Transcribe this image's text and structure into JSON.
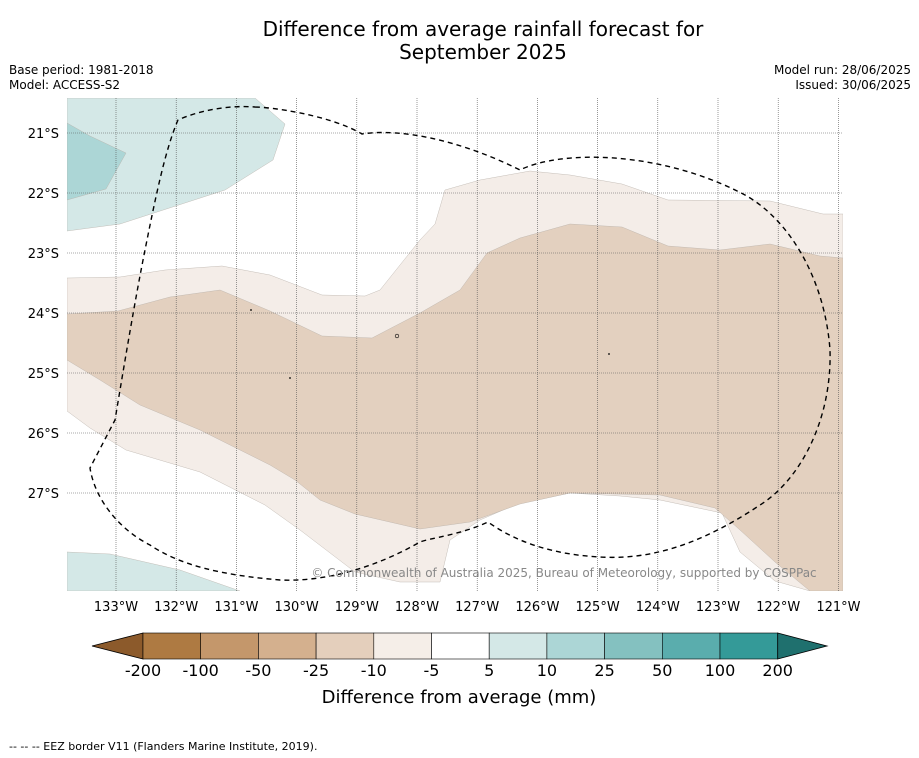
{
  "title_line1": "Difference from average rainfall forecast for",
  "title_line2": "September 2025",
  "base_period": "Base period: 1981-2018",
  "model": "Model: ACCESS-S2",
  "model_run": "Model run: 28/06/2025",
  "issued": "Issued: 30/06/2025",
  "latitude_labels": [
    "21°S",
    "22°S",
    "23°S",
    "24°S",
    "25°S",
    "26°S",
    "27°S"
  ],
  "longitude_labels": [
    "133°W",
    "132°W",
    "131°W",
    "130°W",
    "129°W",
    "128°W",
    "127°W",
    "126°W",
    "125°W",
    "124°W",
    "123°W",
    "122°W",
    "121°W"
  ],
  "copyright": "© Commonwealth of Australia 2025, Bureau of Meteorology, supported by COSPPac",
  "colorbar": {
    "title": "Difference from average (mm)",
    "tick_labels": [
      "-200",
      "-100",
      "-50",
      "-25",
      "-10",
      "-5",
      "5",
      "10",
      "25",
      "50",
      "100",
      "200"
    ],
    "colors": [
      "#8c5a2b",
      "#ae7a42",
      "#c4976b",
      "#d4b08e",
      "#e4cfbc",
      "#f5eee8",
      "#ffffff",
      "#d4e8e7",
      "#acd6d6",
      "#84c1c0",
      "#5aadad",
      "#349a98",
      "#1f706e"
    ]
  },
  "fill_colors": {
    "dry_light": "#f4ede8",
    "dry_medium": "#e3d0bf",
    "wet_light": "#d4e8e7",
    "wet_medium": "#acd6d6"
  },
  "footnote": "--  --  -- EEZ border V11 (Flanders Marine Institute, 2019)."
}
